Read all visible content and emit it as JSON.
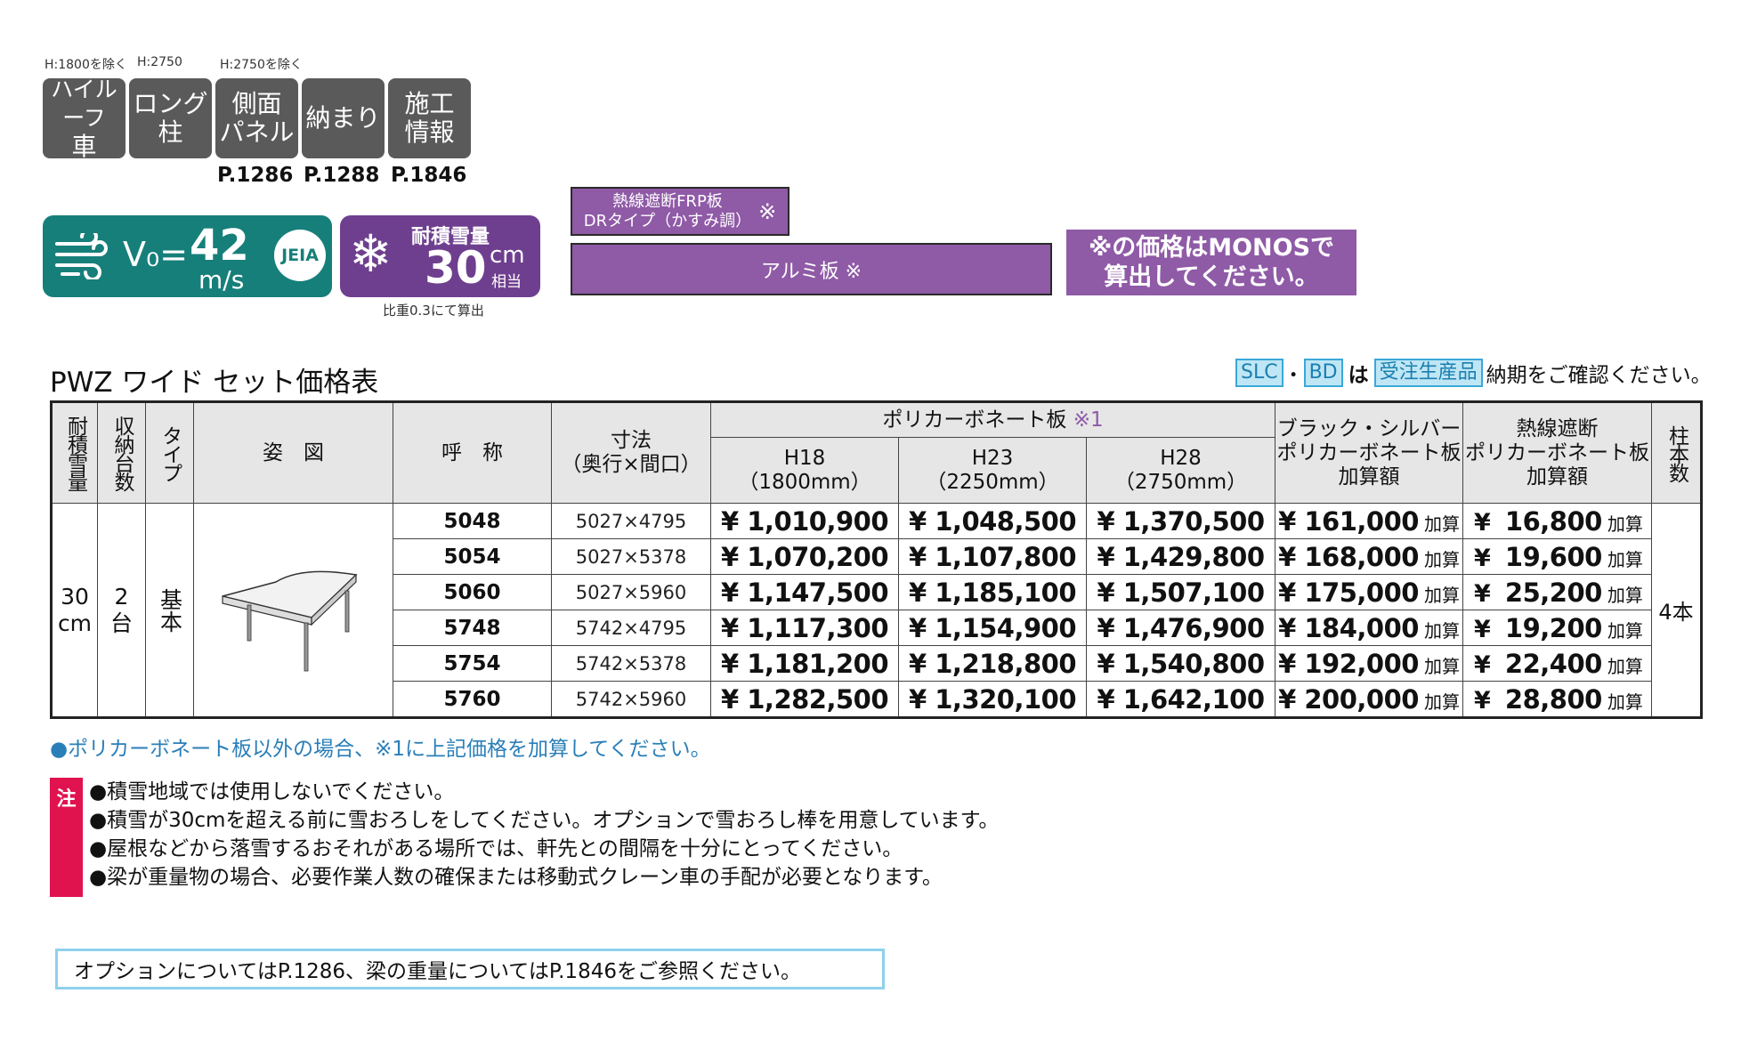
{
  "option_tiles": {
    "notes": [
      "H:1800を除く",
      "H:2750",
      "H:2750を除く"
    ],
    "tiles": [
      {
        "line1": "ハイルーフ",
        "line2": "車"
      },
      {
        "line1": "ロング",
        "line2": "柱"
      },
      {
        "line1": "側面",
        "line2": "パネル"
      },
      {
        "line1": "納まり",
        "line2": ""
      },
      {
        "line1": "施工",
        "line2": "情報"
      }
    ],
    "pages": [
      "P.1286",
      "P.1288",
      "P.1846"
    ]
  },
  "badges": {
    "wind_label": "V₀=",
    "wind_value": "42",
    "wind_unit": "m/s",
    "jeia": "JEIA",
    "snow_label": "耐積雪量",
    "snow_value": "30",
    "snow_unit": "cm",
    "snow_unit2": "相当",
    "snow_note": "比重0.3にて算出"
  },
  "roof_boxes": {
    "frp_line1": "熱線遮断FRP板",
    "frp_line2": "DRタイプ（かすみ調）",
    "frp_mark": "※",
    "alumi": "アルミ板 ※",
    "monos_line1": "※の価格はMONOSで",
    "monos_line2": "算出してください。"
  },
  "heading": {
    "title": "PWZ ワイド セット価格表",
    "tag_slc": "SLC",
    "dot": "・",
    "tag_bd": "BD",
    "ha": "は",
    "tag_order": "受注生産品",
    "confirm": "納期をご確認ください。"
  },
  "table": {
    "headers": {
      "snow": "耐積雪量",
      "count": "収納台数",
      "type": "タイプ",
      "figure": "姿　図",
      "name": "呼　称",
      "size_line1": "寸法",
      "size_line2": "（奥行×間口）",
      "poly": "ポリカーボネート板",
      "poly_mark": "※1",
      "h18": "H18",
      "h18_sub": "（1800mm）",
      "h23": "H23",
      "h23_sub": "（2250mm）",
      "h28": "H28",
      "h28_sub": "（2750mm）",
      "black_line1": "ブラック・シルバー",
      "black_line2": "ポリカーボネート板",
      "black_line3": "加算額",
      "heat_line1": "熱線遮断",
      "heat_line2": "ポリカーボネート板",
      "heat_line3": "加算額",
      "posts": "柱本数"
    },
    "snow_value": "30",
    "snow_unit": "cm",
    "count_value": "2",
    "count_unit": "台",
    "type_value": "基本",
    "posts_value": "4本",
    "add_label": "加算",
    "yen": "¥",
    "rows": [
      {
        "name": "5048",
        "size": "5027×4795",
        "h18": "¥ 1,010,900",
        "h23": "¥ 1,048,500",
        "h28": "¥ 1,370,500",
        "black": "¥ 161,000",
        "heat": "16,800"
      },
      {
        "name": "5054",
        "size": "5027×5378",
        "h18": "¥ 1,070,200",
        "h23": "¥ 1,107,800",
        "h28": "¥ 1,429,800",
        "black": "¥ 168,000",
        "heat": "19,600"
      },
      {
        "name": "5060",
        "size": "5027×5960",
        "h18": "¥ 1,147,500",
        "h23": "¥ 1,185,100",
        "h28": "¥ 1,507,100",
        "black": "¥ 175,000",
        "heat": "25,200"
      },
      {
        "name": "5748",
        "size": "5742×4795",
        "h18": "¥ 1,117,300",
        "h23": "¥ 1,154,900",
        "h28": "¥ 1,476,900",
        "black": "¥ 184,000",
        "heat": "19,200"
      },
      {
        "name": "5754",
        "size": "5742×5378",
        "h18": "¥ 1,181,200",
        "h23": "¥ 1,218,800",
        "h28": "¥ 1,540,800",
        "black": "¥ 192,000",
        "heat": "22,400"
      },
      {
        "name": "5760",
        "size": "5742×5960",
        "h18": "¥ 1,282,500",
        "h23": "¥ 1,320,100",
        "h28": "¥ 1,642,100",
        "black": "¥ 200,000",
        "heat": "28,800"
      }
    ]
  },
  "footnote": "●ポリカーボネート板以外の場合、※1に上記価格を加算してください。",
  "caution": {
    "label": "注",
    "items": [
      "●積雪地域では使用しないでください。",
      "●積雪が30cmを超える前に雪おろしをしてください。オプションで雪おろし棒を用意しています。",
      "●屋根などから落雪するおそれがある場所では、軒先との間隔を十分にとってください。",
      "●梁が重量物の場合、必要作業人数の確保または移動式クレーン車の手配が必要となります。"
    ]
  },
  "reference": "オプションについてはP.1286、梁の重量についてはP.1846をご参照ください。",
  "colors": {
    "teal": "#177f7a",
    "purple": "#8f5aa6",
    "red": "#e0134f",
    "cyan": "#3aa8d8"
  }
}
